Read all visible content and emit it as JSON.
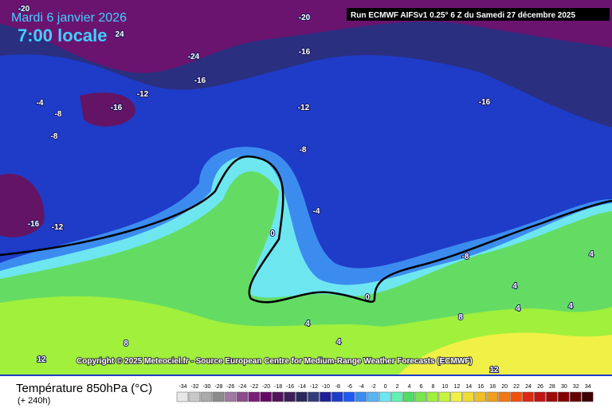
{
  "header": {
    "date": "Mardi 6 janvier 2026",
    "time": "7:00 locale",
    "run": "Run ECMWF AIFSv1 0.25° 6 Z du Samedi 27 décembre 2025"
  },
  "copyright": "Copyright © 2025 Meteociel.fr - Source European Centre for Medium-Range Weather Forecasts (ECMWF)",
  "footer": {
    "title": "Température 850hPa (°C)",
    "subtitle": "(+ 240h)"
  },
  "contour_labels": [
    "-20",
    "-20",
    "24",
    "-24",
    "-16",
    "-16",
    "-12",
    "-16",
    "-12",
    "-16",
    "-4",
    "-8",
    "-8",
    "-8",
    "-4",
    "-16",
    "-12",
    "0",
    "-8",
    "4",
    "0",
    "4",
    "4",
    "8",
    "4",
    "4",
    "4",
    "8",
    "12",
    "12"
  ],
  "scale": {
    "values": [
      -34,
      -32,
      -30,
      -28,
      -26,
      -24,
      -22,
      -20,
      -18,
      -16,
      -14,
      -12,
      -10,
      -8,
      -6,
      -4,
      -2,
      0,
      2,
      4,
      6,
      8,
      10,
      12,
      14,
      16,
      18,
      20,
      22,
      24,
      26,
      28,
      30,
      32,
      34
    ],
    "colors": [
      "#e6e6e6",
      "#c8c8c8",
      "#aaaaaa",
      "#8c8c8c",
      "#a078a0",
      "#8c4b8c",
      "#781e78",
      "#640a64",
      "#50145a",
      "#3c1e5a",
      "#28285a",
      "#323c78",
      "#1e1e96",
      "#1e3cc8",
      "#1e5af0",
      "#3c8cf0",
      "#5ab4f0",
      "#6ee6f0",
      "#64f0b4",
      "#50dc64",
      "#78e650",
      "#a0f03c",
      "#c8f53c",
      "#f0f046",
      "#f0dc32",
      "#f0be28",
      "#f0a01e",
      "#f07814",
      "#f0500a",
      "#dc2814",
      "#be1414",
      "#a00a0a",
      "#820000",
      "#640000",
      "#3c0000"
    ]
  }
}
